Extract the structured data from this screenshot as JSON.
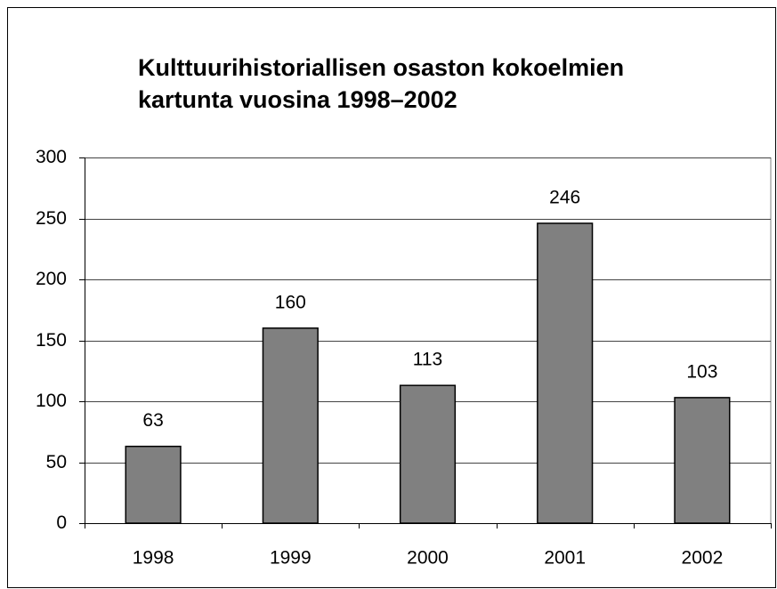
{
  "chart_data": {
    "type": "bar",
    "title": "Kulttuurihistoriallisen osaston kokoelmien kartunta vuosina 1998–2002",
    "categories": [
      "1998",
      "1999",
      "2000",
      "2001",
      "2002"
    ],
    "values": [
      63,
      160,
      113,
      246,
      103
    ],
    "color": "#808080",
    "ylim": [
      0,
      300
    ],
    "yticks": [
      0,
      50,
      100,
      150,
      200,
      250,
      300
    ],
    "grid": true
  }
}
